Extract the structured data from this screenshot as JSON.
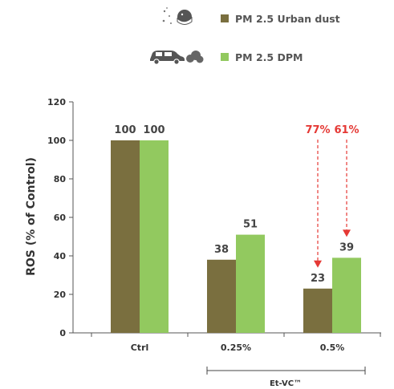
{
  "chart_data": {
    "type": "bar",
    "categories": [
      "Ctrl",
      "0.25%",
      "0.5%"
    ],
    "series": [
      {
        "name": "PM 2.5 Urban dust",
        "values": [
          100,
          38,
          23
        ],
        "color": "#7a6f3f",
        "icon": "face-mask-pollution-icon"
      },
      {
        "name": "PM 2.5 DPM",
        "values": [
          100,
          51,
          39
        ],
        "color": "#92c95f",
        "icon": "car-exhaust-icon"
      }
    ],
    "data_labels": [
      "100",
      "100",
      "38",
      "51",
      "23",
      "39"
    ],
    "ylabel": "ROS (% of Control)",
    "ylim": [
      0,
      120
    ],
    "yticks": [
      0,
      20,
      40,
      60,
      80,
      100,
      120
    ],
    "grid": false,
    "legend_position": "top",
    "group_label": "Et-VC™",
    "group_spans": [
      "0.25%",
      "0.5%"
    ],
    "annotations": [
      {
        "text": "77%",
        "category": "0.5%",
        "series": "PM 2.5 Urban dust",
        "color": "#e53935"
      },
      {
        "text": "61%",
        "category": "0.5%",
        "series": "PM 2.5 DPM",
        "color": "#e53935"
      }
    ]
  }
}
